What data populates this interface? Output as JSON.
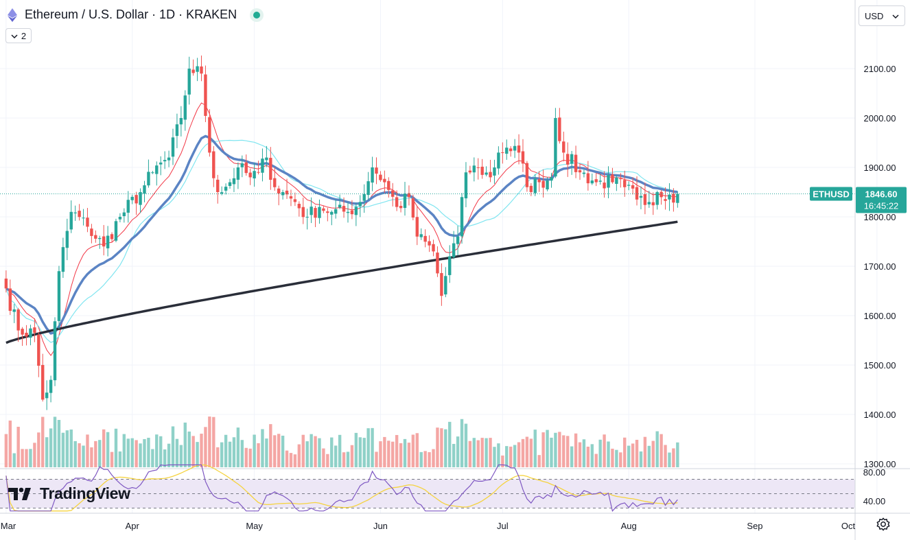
{
  "header": {
    "symbol_title": "Ethereum / U.S. Dollar · 1D · KRAKEN",
    "status": "live",
    "indicator_count": "2",
    "currency": "USD",
    "brand": "TradingView"
  },
  "price_label": {
    "symbol": "ETHUSD",
    "price": "1846.60",
    "countdown": "16:45:22"
  },
  "colors": {
    "up": "#26a69a",
    "down": "#ef5350",
    "ma_fast": "#f23645",
    "ma_mid": "#5b84c4",
    "ma_cyan": "#7fe5f0",
    "ma_long": "#2a2e39",
    "rsi_line": "#7e57c2",
    "rsi_ma": "#f5d33f",
    "rsi_band": "#ede7f6"
  },
  "chart_data": {
    "type": "candlestick",
    "timeframe": "1D",
    "symbol": "ETHUSD",
    "exchange": "KRAKEN",
    "y_ticks": [
      "2100.00",
      "2000.00",
      "1900.00",
      "1800.00",
      "1700.00",
      "1600.00",
      "1500.00",
      "1400.00",
      "1300.00"
    ],
    "ylim": [
      1290,
      2160
    ],
    "x_ticks": [
      "Mar",
      "Apr",
      "May",
      "Jun",
      "Jul",
      "Aug",
      "Sep",
      "Oct"
    ],
    "last_price": 1846.6,
    "close_anchors": [
      [
        "Mar 1",
        1655
      ],
      [
        "Mar 4",
        1570
      ],
      [
        "Mar 8",
        1565
      ],
      [
        "Mar 10",
        1430
      ],
      [
        "Mar 12",
        1470
      ],
      [
        "Mar 14",
        1690
      ],
      [
        "Mar 17",
        1810
      ],
      [
        "Mar 21",
        1780
      ],
      [
        "Mar 25",
        1740
      ],
      [
        "Mar 29",
        1800
      ],
      [
        "Apr 3",
        1850
      ],
      [
        "Apr 6",
        1890
      ],
      [
        "Apr 10",
        1920
      ],
      [
        "Apr 13",
        2000
      ],
      [
        "Apr 15",
        2100
      ],
      [
        "Apr 18",
        2090
      ],
      [
        "Apr 20",
        1930
      ],
      [
        "Apr 22",
        1850
      ],
      [
        "Apr 25",
        1870
      ],
      [
        "Apr 27",
        1900
      ],
      [
        "Apr 30",
        1880
      ],
      [
        "May 2",
        1890
      ],
      [
        "May 4",
        1920
      ],
      [
        "May 6",
        1860
      ],
      [
        "May 8",
        1850
      ],
      [
        "May 11",
        1830
      ],
      [
        "May 14",
        1800
      ],
      [
        "May 17",
        1820
      ],
      [
        "May 20",
        1810
      ],
      [
        "May 24",
        1810
      ],
      [
        "May 27",
        1830
      ],
      [
        "May 30",
        1900
      ],
      [
        "Jun 2",
        1870
      ],
      [
        "Jun 5",
        1820
      ],
      [
        "Jun 8",
        1840
      ],
      [
        "Jun 10",
        1760
      ],
      [
        "Jun 14",
        1730
      ],
      [
        "Jun 16",
        1640
      ],
      [
        "Jun 18",
        1720
      ],
      [
        "Jun 20",
        1760
      ],
      [
        "Jun 22",
        1890
      ],
      [
        "Jun 25",
        1900
      ],
      [
        "Jun 28",
        1880
      ],
      [
        "Jun 30",
        1930
      ],
      [
        "Jul 2",
        1940
      ],
      [
        "Jul 5",
        1930
      ],
      [
        "Jul 7",
        1860
      ],
      [
        "Jul 10",
        1870
      ],
      [
        "Jul 13",
        1880
      ],
      [
        "Jul 14",
        2000
      ],
      [
        "Jul 16",
        1930
      ],
      [
        "Jul 20",
        1890
      ],
      [
        "Jul 24",
        1870
      ],
      [
        "Jul 28",
        1870
      ],
      [
        "Jul 31",
        1860
      ],
      [
        "Aug 3",
        1835
      ],
      [
        "Aug 6",
        1830
      ],
      [
        "Aug 8",
        1850
      ],
      [
        "Aug 11",
        1845
      ],
      [
        "Aug 13",
        1846.6
      ]
    ],
    "moving_averages": [
      {
        "name": "fast",
        "color": "#f23645"
      },
      {
        "name": "mid",
        "color": "#5b84c4"
      },
      {
        "name": "cyan",
        "color": "#7fe5f0"
      },
      {
        "name": "long",
        "color": "#2a2e39"
      }
    ],
    "rsi": {
      "y_ticks": [
        "80.00",
        "40.00"
      ],
      "ylim": [
        25,
        95
      ],
      "upper_band": 70,
      "lower_band": 30
    }
  }
}
